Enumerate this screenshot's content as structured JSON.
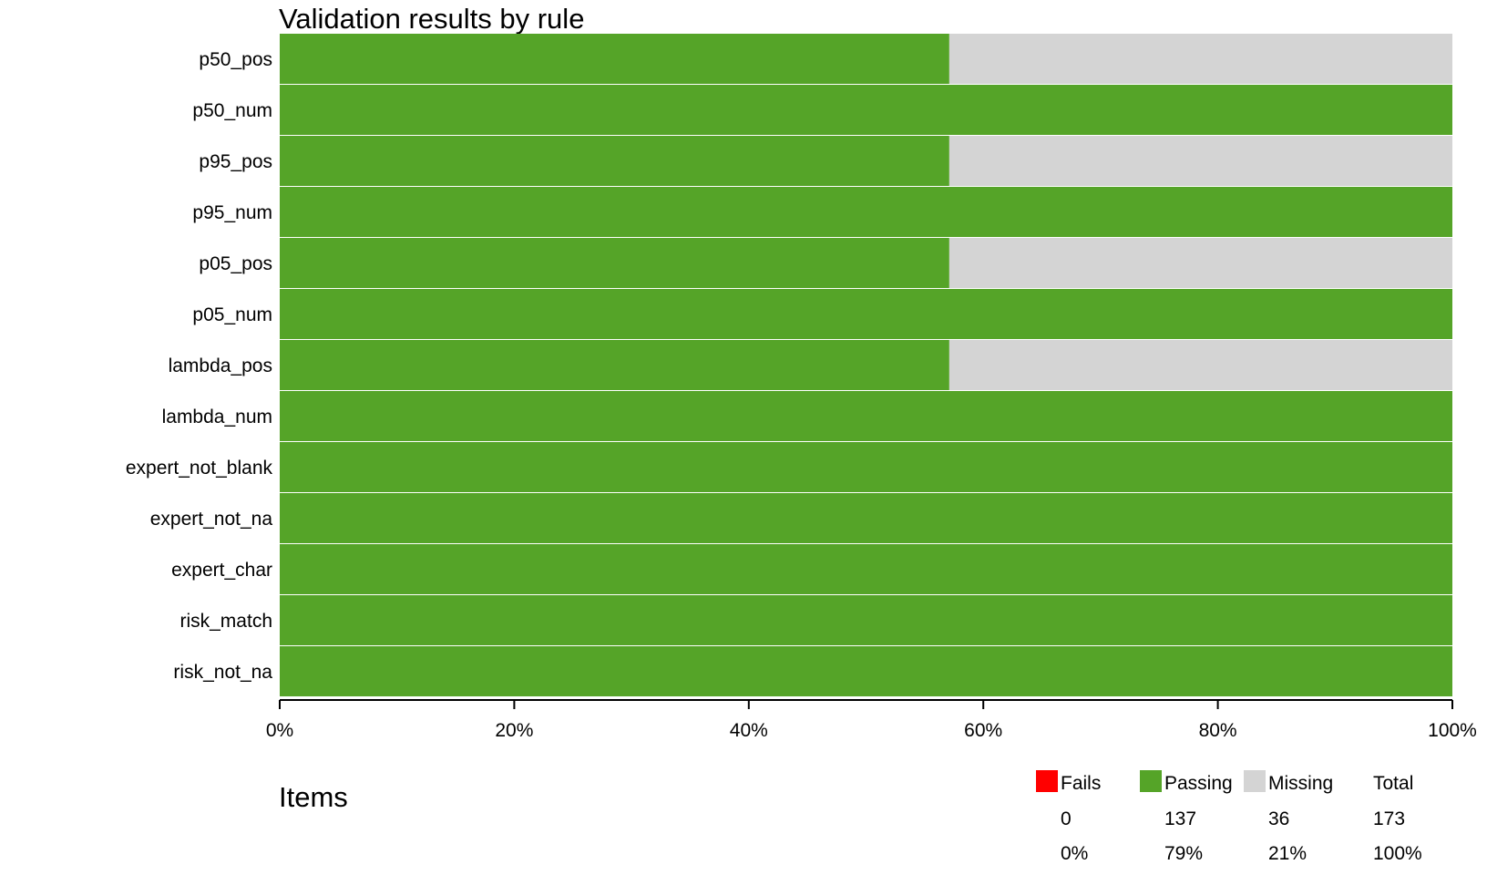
{
  "chart_data": {
    "type": "bar",
    "orientation": "horizontal",
    "stacked": true,
    "title": "Validation results by rule",
    "categories": [
      "p50_pos",
      "p50_num",
      "p95_pos",
      "p95_num",
      "p05_pos",
      "p05_num",
      "lambda_pos",
      "lambda_num",
      "expert_not_blank",
      "expert_not_na",
      "expert_char",
      "risk_match",
      "risk_not_na"
    ],
    "series": [
      {
        "name": "Fails",
        "color": "#ff0000",
        "values": [
          0,
          0,
          0,
          0,
          0,
          0,
          0,
          0,
          0,
          0,
          0,
          0,
          0
        ]
      },
      {
        "name": "Passing",
        "color": "#55a428",
        "values": [
          0.571,
          1,
          0.571,
          1,
          0.571,
          1,
          0.571,
          1,
          1,
          1,
          1,
          1,
          1
        ]
      },
      {
        "name": "Missing",
        "color": "#d4d4d4",
        "values": [
          0.429,
          0,
          0.429,
          0,
          0.429,
          0,
          0.429,
          0,
          0,
          0,
          0,
          0,
          0
        ]
      }
    ],
    "xlim": [
      0,
      1
    ],
    "xticks": [
      "0%",
      "20%",
      "40%",
      "60%",
      "80%",
      "100%"
    ],
    "grid": false,
    "legend_position": "bottom-right"
  },
  "items": {
    "title": "Items",
    "headers": [
      "Fails",
      "Passing",
      "Missing",
      "Total"
    ],
    "colors": [
      "#ff0000",
      "#55a428",
      "#d4d4d4"
    ],
    "counts": [
      "0",
      "137",
      "36",
      "173"
    ],
    "percents": [
      "0%",
      "79%",
      "21%",
      "100%"
    ]
  }
}
